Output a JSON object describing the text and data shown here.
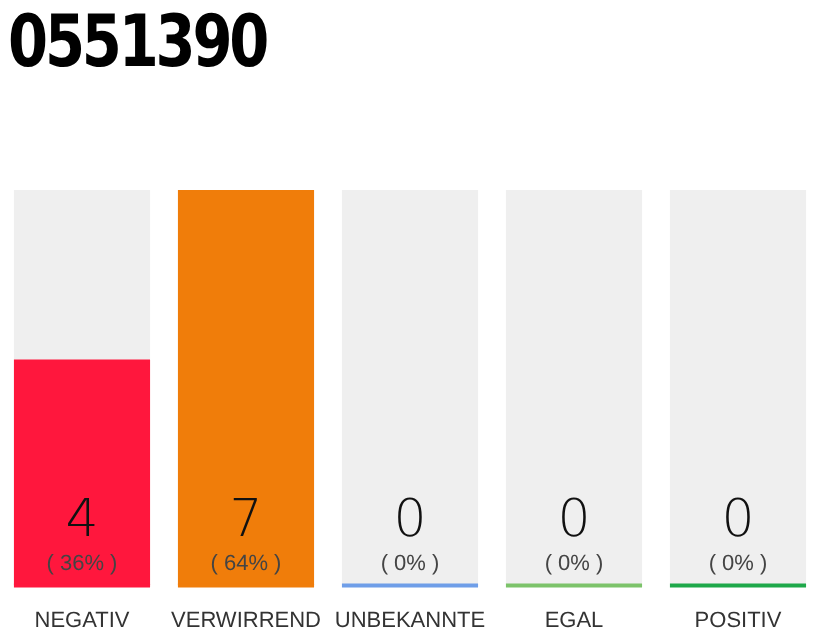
{
  "chart_data": {
    "type": "bar",
    "title": "0551390",
    "categories": [
      "NEGATIV",
      "VERWIRREND",
      "UNBEKANNTE",
      "EGAL",
      "POSITIV"
    ],
    "values": [
      4,
      7,
      0,
      0,
      0
    ],
    "colors": [
      "#ff173d",
      "#f07d0a",
      "#6f9ee8",
      "#7cc36a",
      "#1ea84a"
    ],
    "value_labels": [
      "4",
      "7",
      "0",
      "0",
      "0"
    ],
    "annotations": [
      "( 36% )",
      "( 64% )",
      "( 0% )",
      "( 0% )",
      "( 0% )"
    ],
    "tick_labels": "x",
    "grid": false,
    "legend": false
  }
}
